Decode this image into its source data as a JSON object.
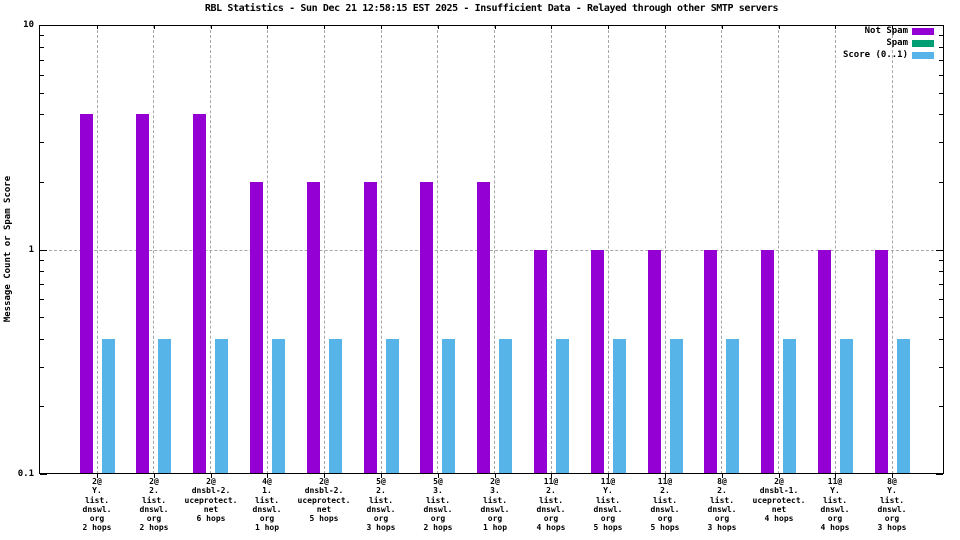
{
  "title": "RBL Statistics - Sun Dec 21 12:58:15 EST 2025 - Insufficient Data - Relayed through other SMTP servers",
  "y_axis": {
    "label": "Message Count or Spam Score",
    "tick_labels": [
      "10",
      "1",
      "0.1"
    ]
  },
  "legend": {
    "position": "top-right-inside",
    "items": [
      {
        "label": "Not Spam",
        "color": "#9400d3"
      },
      {
        "label": "Spam",
        "color": "#009e73"
      },
      {
        "label": "Score (0..1)",
        "color": "#56b4e9"
      }
    ]
  },
  "colors": {
    "not_spam": "#9400d3",
    "spam": "#009e73",
    "score": "#56b4e9",
    "grid": "#a8a8a8",
    "axis": "#000000"
  },
  "chart_data": {
    "type": "bar",
    "title": "RBL Statistics - Sun Dec 21 12:58:15 EST 2025 - Insufficient Data - Relayed through other SMTP servers",
    "xlabel": "",
    "ylabel": "Message Count or Spam Score",
    "y_scale": "log10",
    "ylim": [
      0.1,
      10
    ],
    "y_major_ticks": [
      10,
      1,
      0.1
    ],
    "y_major_tick_labels": [
      "10",
      "1",
      "0.1"
    ],
    "grid": true,
    "legend_position": "top-right-inside",
    "categories": [
      [
        "2@",
        "Y.",
        "list.",
        "dnswl.",
        "org",
        "2 hops"
      ],
      [
        "2@",
        "2.",
        "list.",
        "dnswl.",
        "org",
        "2 hops"
      ],
      [
        "2@",
        "dnsbl-2.",
        "uceprotect.",
        "net",
        "6 hops"
      ],
      [
        "4@",
        "1.",
        "list.",
        "dnswl.",
        "org",
        "1 hop"
      ],
      [
        "2@",
        "dnsbl-2.",
        "uceprotect.",
        "net",
        "5 hops"
      ],
      [
        "5@",
        "2.",
        "list.",
        "dnswl.",
        "org",
        "3 hops"
      ],
      [
        "5@",
        "3.",
        "list.",
        "dnswl.",
        "org",
        "2 hops"
      ],
      [
        "2@",
        "3.",
        "list.",
        "dnswl.",
        "org",
        "1 hop"
      ],
      [
        "11@",
        "2.",
        "list.",
        "dnswl.",
        "org",
        "4 hops"
      ],
      [
        "11@",
        "Y.",
        "list.",
        "dnswl.",
        "org",
        "5 hops"
      ],
      [
        "11@",
        "2.",
        "list.",
        "dnswl.",
        "org",
        "5 hops"
      ],
      [
        "8@",
        "2.",
        "list.",
        "dnswl.",
        "org",
        "3 hops"
      ],
      [
        "2@",
        "dnsbl-1.",
        "uceprotect.",
        "net",
        "4 hops"
      ],
      [
        "11@",
        "Y.",
        "list.",
        "dnswl.",
        "org",
        "4 hops"
      ],
      [
        "8@",
        "Y.",
        "list.",
        "dnswl.",
        "org",
        "3 hops"
      ]
    ],
    "series": [
      {
        "name": "Not Spam",
        "color": "#9400d3",
        "values": [
          4,
          4,
          4,
          2,
          2,
          2,
          2,
          2,
          1,
          1,
          1,
          1,
          1,
          1,
          1
        ]
      },
      {
        "name": "Spam",
        "color": "#009e73",
        "values": [
          0,
          0,
          0,
          0,
          0,
          0,
          0,
          0,
          0,
          0,
          0,
          0,
          0,
          0,
          0
        ]
      },
      {
        "name": "Score (0..1)",
        "color": "#56b4e9",
        "values": [
          0.4,
          0.4,
          0.4,
          0.4,
          0.4,
          0.4,
          0.4,
          0.4,
          0.4,
          0.4,
          0.4,
          0.4,
          0.4,
          0.4,
          0.4
        ]
      }
    ]
  }
}
